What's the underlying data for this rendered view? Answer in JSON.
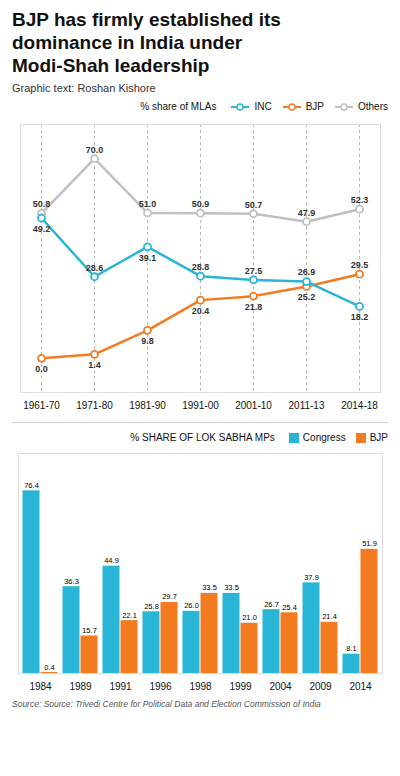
{
  "chart_data": [
    {
      "type": "line",
      "title": "BJP has firmly established its\ndominance in India under\nModi-Shah leadership",
      "subtitle": "Graphic text: Roshan Kishore",
      "legend_title": "% share of MLAs",
      "categories": [
        "1961-70",
        "1971-80",
        "1981-90",
        "1991-00",
        "2001-10",
        "2011-13",
        "2014-18"
      ],
      "series": [
        {
          "name": "INC",
          "color": "#29b6d6",
          "values": [
            49.2,
            28.6,
            39.1,
            28.8,
            27.5,
            26.9,
            18.2
          ],
          "value_labels": [
            "49.2",
            "28.6",
            "39.1",
            "28.8",
            "27.5",
            "26.9",
            "18.2"
          ]
        },
        {
          "name": "BJP",
          "color": "#f47b20",
          "values": [
            0.0,
            1.4,
            9.8,
            20.4,
            21.8,
            25.2,
            29.5
          ],
          "value_labels": [
            "0.0",
            "1.4",
            "9.8",
            "20.4",
            "21.8",
            "25.2",
            "29.5"
          ]
        },
        {
          "name": "Others",
          "color": "#c0c0c0",
          "values": [
            50.8,
            70.0,
            51.0,
            50.9,
            50.7,
            47.9,
            52.3
          ],
          "value_labels": [
            "50.8",
            "70.0",
            "51.0",
            "50.9",
            "50.7",
            "47.9",
            "52.3"
          ]
        }
      ],
      "ylim": [
        -12,
        82
      ],
      "grid": "x",
      "legend": "upper right",
      "marker": "circle",
      "data_labels": true,
      "tick_labels": "x"
    },
    {
      "type": "bar",
      "legend_title": "% SHARE OF LOK SABHA MPs",
      "source": "Source: Source: Trivedi Centre for Political Data and Election Commission of India",
      "categories": [
        "1984",
        "1989",
        "1991",
        "1996",
        "1998",
        "1999",
        "2004",
        "2009",
        "2014"
      ],
      "series": [
        {
          "name": "Congress",
          "color": "#29b6d6",
          "values": [
            76.4,
            36.3,
            44.9,
            25.8,
            26.0,
            33.5,
            26.7,
            37.9,
            8.1
          ],
          "value_labels": [
            "76.4",
            "36.3",
            "44.9",
            "25.8",
            "26.0",
            "33.5",
            "26.7",
            "37.9",
            "8.1"
          ]
        },
        {
          "name": "BJP",
          "color": "#f47b20",
          "values": [
            0.4,
            15.7,
            22.1,
            29.7,
            33.5,
            21.0,
            25.4,
            21.4,
            51.9
          ],
          "value_labels": [
            "0.4",
            "15.7",
            "22.1",
            "29.7",
            "33.5",
            "21.0",
            "25.4",
            "21.4",
            "51.9"
          ]
        }
      ],
      "ylim": [
        0,
        92
      ],
      "grid": false,
      "legend": "upper right",
      "data_labels": true,
      "tick_labels": "x"
    }
  ]
}
